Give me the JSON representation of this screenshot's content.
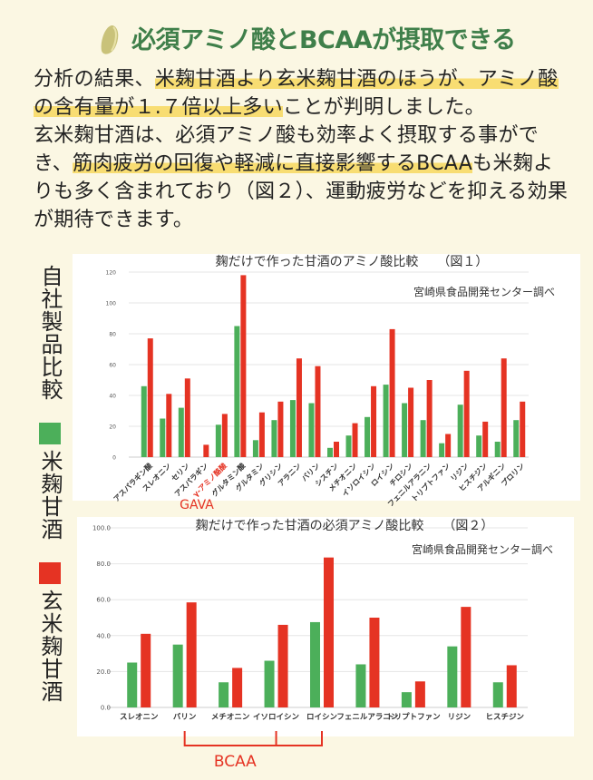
{
  "header": {
    "title": "必須アミノ酸とBCAAが摂取できる",
    "icon": "rice-grain-icon"
  },
  "paragraphs": [
    [
      {
        "text": "分析の結果、",
        "hl": false
      },
      {
        "text": "米麹甘酒より玄米麹甘酒のほうが、アミノ酸の含有量が１.７倍以上多い",
        "hl": true
      },
      {
        "text": "ことが判明しました。",
        "hl": false
      }
    ],
    [
      {
        "text": "玄米麹甘酒は、必須アミノ酸も効率よく摂取する事ができ、",
        "hl": false
      },
      {
        "text": "筋肉疲労の回復や軽減に直接影響するBCAA",
        "hl": true
      },
      {
        "text": "も米麹よりも多く含まれており（図２）、運動疲労などを抑える効果が期待できます。",
        "hl": false
      }
    ]
  ],
  "legend": {
    "heading": "自社製品比較",
    "items": [
      {
        "label": "米麹甘酒",
        "color": "#4caf5a"
      },
      {
        "label": "玄米麹甘酒",
        "color": "#e53323"
      }
    ]
  },
  "chart_data": [
    {
      "type": "bar",
      "title": "麹だけで作った甘酒のアミノ酸比較　　（図１）",
      "source": "宮崎県食品開発センター調べ",
      "ylim": [
        0,
        120
      ],
      "yticks": [
        "0",
        "20",
        "40",
        "60",
        "80",
        "100",
        "120"
      ],
      "grid": true,
      "categories": [
        "アスパラギン酸",
        "スレオニン",
        "セリン",
        "アスパラギン",
        "γ-アミノ酪酸",
        "グルタミン酸",
        "グルタミン",
        "グリシン",
        "アラニン",
        "バリン",
        "シスチン",
        "メチオニン",
        "イソロイシン",
        "ロイシン",
        "チロシン",
        "フェニルアラニン",
        "トリプトファン",
        "リジン",
        "ヒスチジン",
        "アルギニン",
        "プロリン"
      ],
      "highlight_category": "γ-アミノ酪酸",
      "highlight_annotation": "GAVA",
      "series": [
        {
          "name": "米麹甘酒",
          "color": "#4caf5a",
          "values": [
            46,
            25,
            32,
            0,
            21,
            85,
            11,
            24,
            37,
            35,
            6,
            14,
            26,
            47,
            35,
            24,
            9,
            34,
            14,
            10,
            24
          ]
        },
        {
          "name": "玄米麹甘酒",
          "color": "#e53323",
          "values": [
            77,
            41,
            51,
            8,
            28,
            118,
            29,
            36,
            64,
            59,
            10,
            22,
            46,
            83,
            45,
            50,
            15,
            56,
            23,
            64,
            36
          ]
        }
      ]
    },
    {
      "type": "bar",
      "title": "麹だけで作った甘酒の必須アミノ酸比較　　（図２）",
      "source": "宮崎県食品開発センター調べ",
      "ylim": [
        0,
        100
      ],
      "yticks": [
        "0.0",
        "20.0",
        "40.0",
        "60.0",
        "80.0",
        "100.0"
      ],
      "grid": true,
      "categories": [
        "スレオニン",
        "バリン",
        "メチオニン",
        "イソロイシン",
        "ロイシン",
        "フェニルアラニン",
        "トリプトファン",
        "リジン",
        "ヒスチジン"
      ],
      "bracket_label": "BCAA",
      "bracket_categories": [
        "バリン",
        "イソロイシン",
        "ロイシン"
      ],
      "series": [
        {
          "name": "米麹甘酒",
          "color": "#4caf5a",
          "values": [
            25,
            35,
            14,
            26,
            47.5,
            24,
            8.5,
            34,
            14
          ]
        },
        {
          "name": "玄米麹甘酒",
          "color": "#e53323",
          "values": [
            41,
            58.5,
            22,
            46,
            83.5,
            50,
            14.5,
            56,
            23.5
          ]
        }
      ]
    }
  ]
}
